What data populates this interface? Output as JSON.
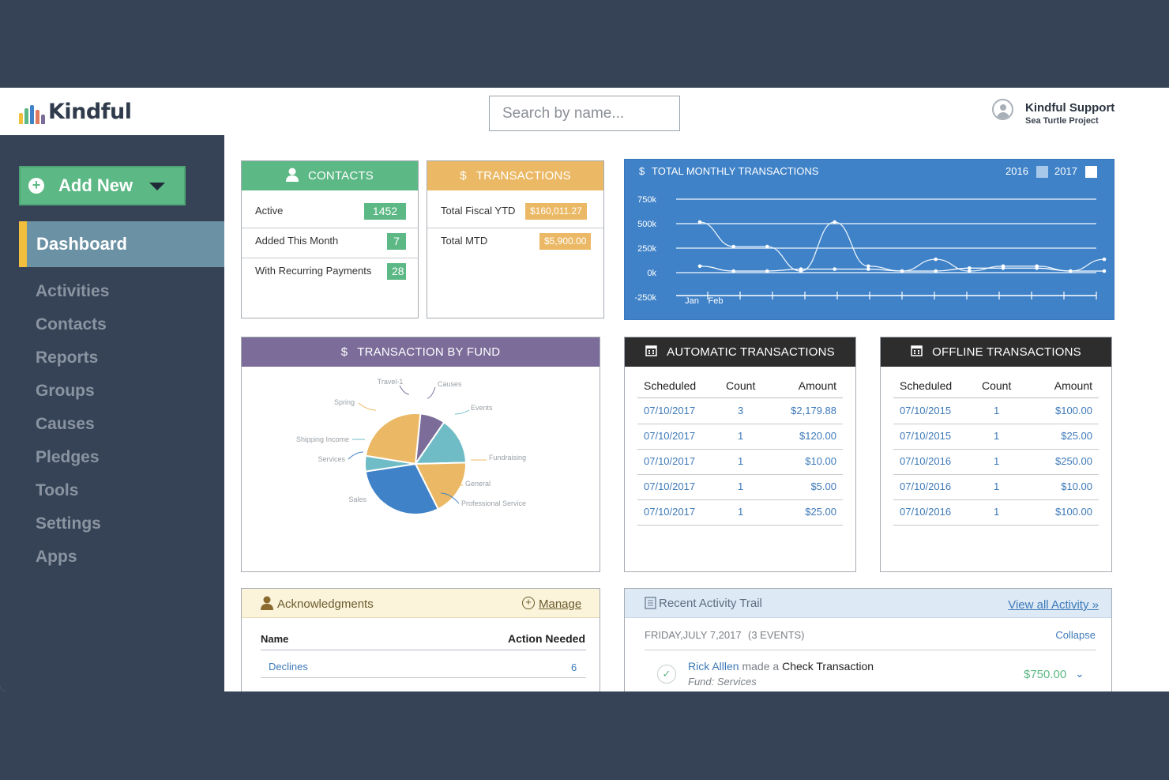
{
  "brand": {
    "name": "Kindful",
    "bar_colors": [
      "#f2be3e",
      "#5cb885",
      "#3f82c8",
      "#e07a5f",
      "#7b6c99"
    ]
  },
  "search": {
    "placeholder": "Search by name..."
  },
  "user": {
    "name": "Kindful Support",
    "org": "Sea Turtle Project"
  },
  "sidebar": {
    "add_new": "Add New",
    "active": "Dashboard",
    "items": [
      "Activities",
      "Contacts",
      "Reports",
      "Groups",
      "Causes",
      "Pledges",
      "Tools",
      "Settings",
      "Apps"
    ]
  },
  "contacts": {
    "title": "CONTACTS",
    "rows": [
      {
        "label": "Active",
        "value": "1452"
      },
      {
        "label": "Added This Month",
        "value": "7"
      },
      {
        "label": "With Recurring Payments",
        "value": "28"
      }
    ]
  },
  "transactions": {
    "title": "TRANSACTIONS",
    "icon": "$",
    "rows": [
      {
        "label": "Total Fiscal YTD",
        "value": "$160,011.27"
      },
      {
        "label": "Total MTD",
        "value": "$5,900.00"
      }
    ]
  },
  "monthly": {
    "title": "TOTAL MONTHLY TRANSACTIONS",
    "icon": "$",
    "legend": [
      "2016",
      "2017"
    ]
  },
  "fund": {
    "title": "TRANSACTION BY FUND",
    "icon": "$"
  },
  "auto": {
    "title": "AUTOMATIC TRANSACTIONS",
    "headers": [
      "Scheduled",
      "Count",
      "Amount"
    ],
    "rows": [
      [
        "07/10/2017",
        "3",
        "$2,179.88"
      ],
      [
        "07/10/2017",
        "1",
        "$120.00"
      ],
      [
        "07/10/2017",
        "1",
        "$10.00"
      ],
      [
        "07/10/2017",
        "1",
        "$5.00"
      ],
      [
        "07/10/2017",
        "1",
        "$25.00"
      ]
    ]
  },
  "offline": {
    "title": "OFFLINE TRANSACTIONS",
    "headers": [
      "Scheduled",
      "Count",
      "Amount"
    ],
    "rows": [
      [
        "07/10/2015",
        "1",
        "$100.00"
      ],
      [
        "07/10/2015",
        "1",
        "$25.00"
      ],
      [
        "07/10/2016",
        "1",
        "$250.00"
      ],
      [
        "07/10/2016",
        "1",
        "$10.00"
      ],
      [
        "07/10/2016",
        "1",
        "$100.00"
      ]
    ]
  },
  "ack": {
    "title": "Acknowledgments",
    "manage": "Manage",
    "col_name": "Name",
    "col_action": "Action Needed",
    "rows": [
      {
        "name": "Declines",
        "count": "6"
      }
    ]
  },
  "activity": {
    "title": "Recent Activity Trail",
    "view_all": "View all Activity »",
    "date": "FRIDAY,JULY 7,2017",
    "events": "(3 EVENTS)",
    "collapse": "Collapse",
    "item": {
      "who": "Rick Alllen",
      "verb": "made a",
      "what": "Check Transaction",
      "fund": "Fund: Services",
      "amount": "$750.00"
    }
  },
  "chart_data": [
    {
      "type": "line",
      "title": "TOTAL MONTHLY TRANSACTIONS",
      "yticks": [
        "750k",
        "500k",
        "250k",
        "0k",
        "-250k"
      ],
      "ylim": [
        -250000,
        750000
      ],
      "xticks": [
        "Jan",
        "Feb"
      ],
      "x_points": 13,
      "series": [
        {
          "name": "2016",
          "values": [
            500000,
            250000,
            250000,
            0,
            500000,
            50000,
            0,
            120000,
            0,
            50000,
            50000,
            0,
            120000
          ]
        },
        {
          "name": "2017",
          "values": [
            50000,
            0,
            0,
            20000,
            20000,
            20000,
            0,
            0,
            30000,
            30000,
            30000,
            0,
            0
          ]
        }
      ],
      "grid": true,
      "legend": "top-right"
    },
    {
      "type": "pie",
      "title": "TRANSACTION BY FUND",
      "labels": [
        "Causes",
        "Events",
        "Fundraising",
        "General",
        "Professional Service",
        "Sales",
        "Services",
        "Shipping Income",
        "Spring",
        "Travel-1"
      ],
      "slices": [
        {
          "label": "Travel-1",
          "value": 8,
          "color": "#7b6c99"
        },
        {
          "label": "Events",
          "value": 15,
          "color": "#6fbcc6"
        },
        {
          "label": "Fundraising",
          "value": 18,
          "color": "#ebb965"
        },
        {
          "label": "Sales",
          "value": 30,
          "color": "#3f82c8"
        },
        {
          "label": "Shipping Income",
          "value": 5,
          "color": "#6fbcc6"
        },
        {
          "label": "Spring",
          "value": 24,
          "color": "#ebb965"
        }
      ]
    }
  ],
  "colors": {
    "green": "#5cb885",
    "orange": "#ebb965",
    "purple": "#7b6c99",
    "blue": "#3f82c8",
    "dark": "#2d2d2d",
    "link": "#3d79b8"
  }
}
